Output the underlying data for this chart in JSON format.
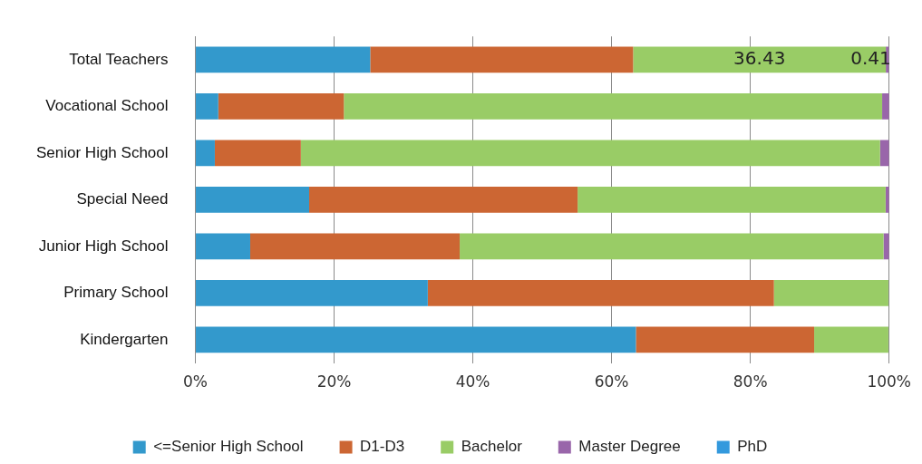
{
  "chart_data": {
    "type": "bar",
    "orientation": "horizontal",
    "stacked": true,
    "categories": [
      "Total Teachers",
      "Vocational School",
      "Senior High School",
      "Special Need",
      "Junior High School",
      "Primary School",
      "Kindergarten"
    ],
    "series": [
      {
        "name": "<=Senior High School",
        "color": "#3399cc",
        "values": [
          25.2,
          3.3,
          2.8,
          16.4,
          7.9,
          33.5,
          63.5
        ]
      },
      {
        "name": "D1-D3",
        "color": "#cc6633",
        "values": [
          37.9,
          18.1,
          12.4,
          38.7,
          30.2,
          49.9,
          25.7
        ]
      },
      {
        "name": "Bachelor",
        "color": "#99cc66",
        "values": [
          36.43,
          77.6,
          83.5,
          44.4,
          61.1,
          16.5,
          10.7
        ],
        "value_labels": [
          "36.43",
          null,
          null,
          null,
          null,
          null,
          null
        ]
      },
      {
        "name": "Master Degree",
        "color": "#9966aa",
        "values": [
          0.41,
          1.0,
          1.3,
          0.5,
          0.8,
          null,
          null
        ],
        "value_labels": [
          "0.41",
          null,
          null,
          null,
          null,
          null,
          null
        ]
      },
      {
        "name": "PhD",
        "color": "#3399dd",
        "values": [
          null,
          null,
          null,
          null,
          null,
          null,
          null
        ]
      }
    ],
    "xlim": [
      0,
      100
    ],
    "xticks": [
      {
        "value": 0,
        "label": "0%"
      },
      {
        "value": 20,
        "label": "20%"
      },
      {
        "value": 40,
        "label": "40%"
      },
      {
        "value": 60,
        "label": "60%"
      },
      {
        "value": 80,
        "label": "80%"
      },
      {
        "value": 100,
        "label": "100%"
      }
    ],
    "grid": "x",
    "legend": "bottom"
  }
}
